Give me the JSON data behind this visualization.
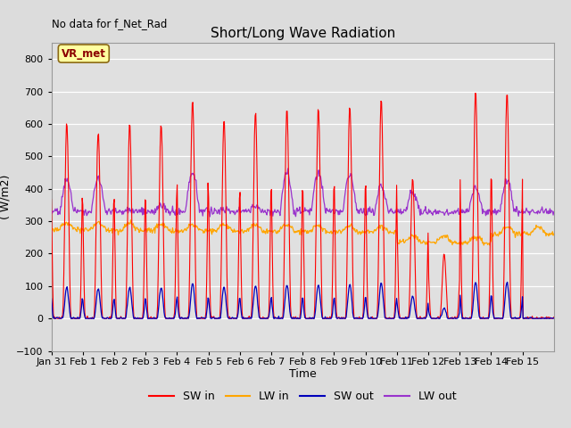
{
  "title": "Short/Long Wave Radiation",
  "xlabel": "Time",
  "ylabel": "( W/m2)",
  "top_label": "No data for f_Net_Rad",
  "station_label": "VR_met",
  "ylim": [
    -100,
    850
  ],
  "yticks": [
    -100,
    0,
    100,
    200,
    300,
    400,
    500,
    600,
    700,
    800
  ],
  "colors": {
    "SW_in": "#FF0000",
    "LW_in": "#FFA500",
    "SW_out": "#0000BB",
    "LW_out": "#9933CC"
  },
  "legend": [
    "SW in",
    "LW in",
    "SW out",
    "LW out"
  ],
  "background_color": "#E8E8E8",
  "n_days": 16,
  "x_tick_labels": [
    "Jan 31",
    "Feb 1",
    "Feb 2",
    "Feb 3",
    "Feb 4",
    "Feb 5",
    "Feb 6",
    "Feb 7",
    "Feb 8",
    "Feb 9",
    "Feb 10",
    "Feb 11",
    "Feb 12",
    "Feb 13",
    "Feb 14",
    "Feb 15"
  ],
  "sw_in_peaks": [
    605,
    578,
    600,
    600,
    676,
    612,
    638,
    645,
    651,
    658,
    678,
    430,
    200,
    703,
    700,
    0
  ],
  "sw_out_ratio": 0.16,
  "lw_in_base": 275,
  "lw_out_base": 330,
  "lw_out_peaks": [
    425,
    430,
    335,
    345,
    450,
    335,
    345,
    450,
    445,
    445,
    405,
    390,
    325,
    400,
    425,
    330
  ]
}
